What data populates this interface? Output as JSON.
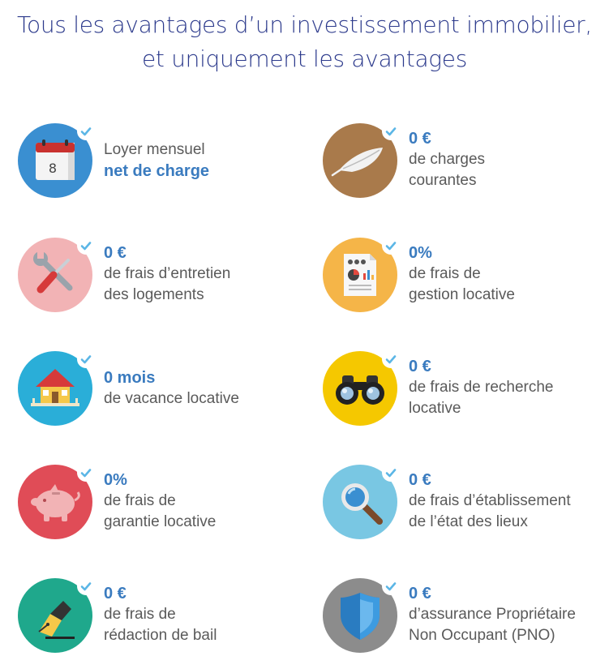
{
  "title": {
    "line1": "Tous les avantages d’un investissement immobilier,",
    "line2": "et uniquement les avantages"
  },
  "items": [
    {
      "icon": "calendar-icon",
      "color": "#3a8fd1",
      "highlight": "",
      "line1": "Loyer mensuel",
      "line2": "net de charge",
      "line3": "",
      "calendar_day": "8"
    },
    {
      "icon": "feather-icon",
      "color": "#a97a4b",
      "highlight": "0 €",
      "line1": "de charges",
      "line2": "courantes",
      "line3": ""
    },
    {
      "icon": "tools-icon",
      "color": "#f2b3b5",
      "highlight": "0 €",
      "line1": "de frais d’entretien",
      "line2": "des logements",
      "line3": ""
    },
    {
      "icon": "document-chart-icon",
      "color": "#f5b548",
      "highlight": "0%",
      "line1": "de frais de",
      "line2": "gestion locative",
      "line3": ""
    },
    {
      "icon": "house-icon",
      "color": "#2aaed8",
      "highlight": "0 mois",
      "line1": "de vacance locative",
      "line2": "",
      "line3": ""
    },
    {
      "icon": "binoculars-icon",
      "color": "#f5c800",
      "highlight": "0 €",
      "line1": "de frais de recherche",
      "line2": "locative",
      "line3": ""
    },
    {
      "icon": "piggy-bank-icon",
      "color": "#e04c57",
      "highlight": "0%",
      "line1": "de frais de",
      "line2": "garantie locative",
      "line3": ""
    },
    {
      "icon": "magnifier-icon",
      "color": "#79c7e3",
      "highlight": "0 €",
      "line1": "de frais d’établissement",
      "line2": "de l’état des lieux",
      "line3": ""
    },
    {
      "icon": "pen-nib-icon",
      "color": "#1fa88c",
      "highlight": "0 €",
      "line1": "de frais de",
      "line2": "rédaction de bail",
      "line3": ""
    },
    {
      "icon": "shield-icon",
      "color": "#8c8c8c",
      "highlight": "0 €",
      "line1": "d’assurance Propriétaire",
      "line2": "Non Occupant (PNO)",
      "line3": ""
    }
  ],
  "colors": {
    "title": "#2c3a8c",
    "highlight": "#3a7bbf",
    "body_text": "#5a5a5a",
    "check": "#5bb6e6"
  }
}
